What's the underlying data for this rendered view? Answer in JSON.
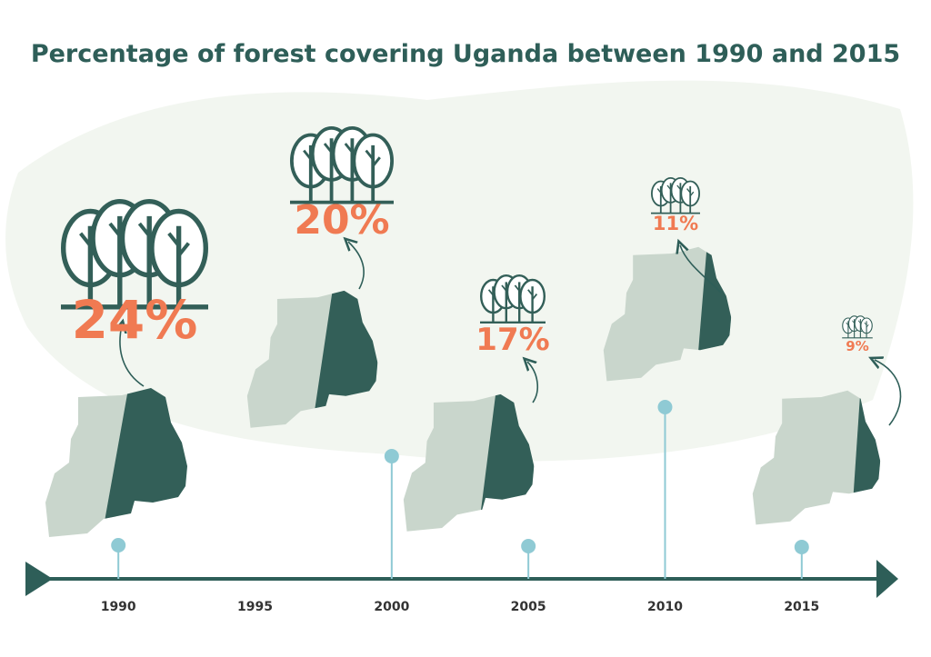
{
  "chart_data": {
    "type": "infographic-timeline",
    "title": "Percentage of forest covering Uganda between 1990 and 2015",
    "x": [
      1990,
      2000,
      2005,
      2010,
      2015
    ],
    "values": [
      24,
      20,
      17,
      11,
      9
    ],
    "value_labels": [
      "24%",
      "20%",
      "17%",
      "11%",
      "9%"
    ],
    "axis_ticks": [
      "1990",
      "1995",
      "2000",
      "2005",
      "2010",
      "2015"
    ],
    "unit": "%",
    "colors": {
      "forest": "#335f58",
      "land": "#c9d6cc",
      "value": "#f07a52",
      "axis": "#2e5e58",
      "marker": "#8fcad4",
      "title": "#2e5e58",
      "background_wash": "#f1f5ee"
    }
  }
}
